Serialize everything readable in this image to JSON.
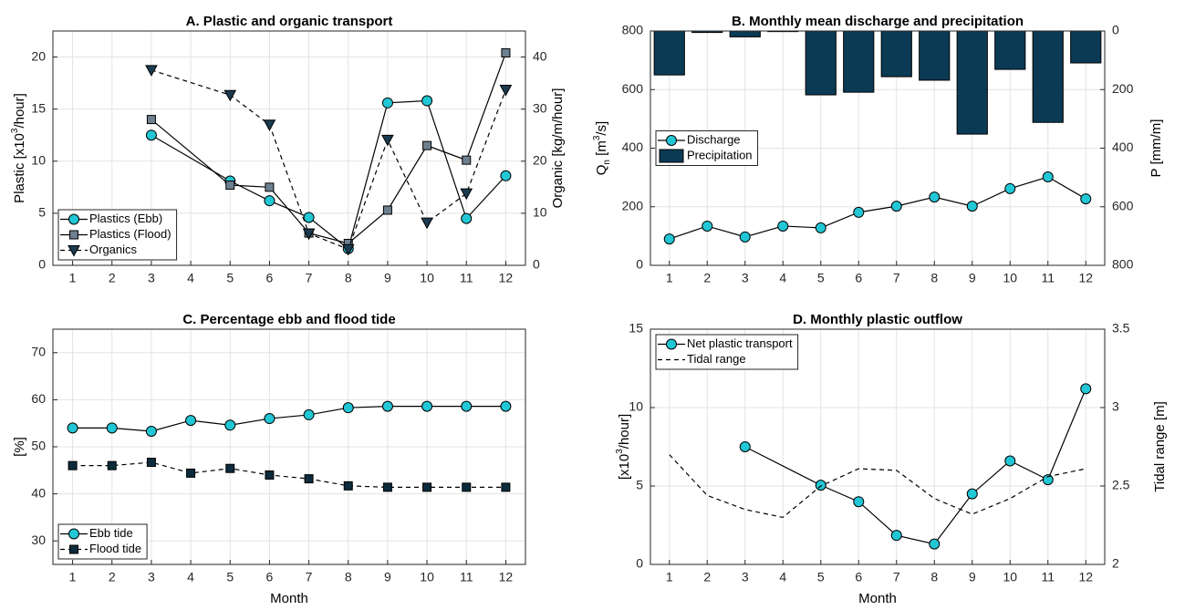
{
  "chart_data": [
    {
      "type": "line",
      "title": "A. Plastic and organic transport",
      "ylabel": [
        "Plastic [x10",
        {
          "sup": "3"
        },
        "/hour]"
      ],
      "y2label": [
        "Organic [kg/m/hour]"
      ],
      "xlim": [
        0.5,
        12.5
      ],
      "xticks": [
        1,
        2,
        3,
        4,
        5,
        6,
        7,
        8,
        9,
        10,
        11,
        12
      ],
      "ylim": [
        0,
        22.5
      ],
      "yticks": [
        0,
        5,
        10,
        15,
        20
      ],
      "y2lim": [
        0,
        45
      ],
      "y2ticks": [
        0,
        10,
        20,
        30,
        40
      ],
      "grid": true,
      "legend": "lower left",
      "series": [
        {
          "name": "Plastics (Ebb)",
          "color": "#22c7d6",
          "marker": "circle",
          "dash": false,
          "x": [
            3,
            5,
            6,
            7,
            8,
            9,
            10,
            11,
            12
          ],
          "values": [
            12.5,
            8.1,
            6.2,
            4.6,
            1.6,
            15.6,
            15.8,
            4.5,
            8.6
          ]
        },
        {
          "name": "Plastics (Flood)",
          "color": "#6d8090",
          "marker": "square",
          "dash": false,
          "x": [
            3,
            5,
            6,
            7,
            8,
            9,
            10,
            11,
            12
          ],
          "values": [
            14.0,
            7.7,
            7.5,
            3.1,
            2.1,
            5.3,
            11.5,
            10.1,
            20.4
          ]
        },
        {
          "name": "Organics",
          "color": "#1b3b50",
          "marker": "triangle",
          "dash": true,
          "axis": "y2",
          "x": [
            3,
            5,
            6,
            7,
            8,
            9,
            10,
            11,
            12
          ],
          "values": [
            37.5,
            32.7,
            27.0,
            6.1,
            3.1,
            24.1,
            8.2,
            13.8,
            33.7
          ]
        }
      ]
    },
    {
      "type": "line",
      "title": "B. Monthly mean discharge and precipitation",
      "ylabel": [
        "Q",
        {
          "sub": "n"
        },
        " [m",
        {
          "sup": "3"
        },
        "/s]"
      ],
      "y2label": [
        "P [mm/m]"
      ],
      "xlim": [
        0.5,
        12.5
      ],
      "xticks": [
        1,
        2,
        3,
        4,
        5,
        6,
        7,
        8,
        9,
        10,
        11,
        12
      ],
      "ylim": [
        0,
        800
      ],
      "yticks": [
        0,
        200,
        400,
        600,
        800
      ],
      "y2lim": [
        0,
        800
      ],
      "y2ticks": [
        0,
        200,
        400,
        600,
        800
      ],
      "y2reverse": true,
      "grid": true,
      "legend": "center left",
      "series": [
        {
          "name": "Discharge",
          "color": "#22c7d6",
          "marker": "circle",
          "dash": false,
          "x": [
            1,
            2,
            3,
            4,
            5,
            6,
            7,
            8,
            9,
            10,
            11,
            12
          ],
          "values": [
            90,
            134,
            97,
            134,
            128,
            181,
            202,
            233,
            202,
            262,
            302,
            227
          ]
        },
        {
          "name": "Precipitation",
          "color": "#0b3a55",
          "kind": "bar",
          "axis": "y2",
          "x": [
            1,
            2,
            3,
            4,
            5,
            6,
            7,
            8,
            9,
            10,
            11,
            12
          ],
          "values": [
            150,
            5,
            20,
            2,
            218,
            209,
            156,
            168,
            352,
            131,
            312,
            109
          ]
        }
      ]
    },
    {
      "type": "line",
      "title": "C. Percentage ebb and flood tide",
      "xlabel": "Month",
      "ylabel": [
        "[%]"
      ],
      "xlim": [
        0.5,
        12.5
      ],
      "xticks": [
        1,
        2,
        3,
        4,
        5,
        6,
        7,
        8,
        9,
        10,
        11,
        12
      ],
      "ylim": [
        25,
        75
      ],
      "yticks": [
        30,
        40,
        50,
        60,
        70
      ],
      "grid": true,
      "legend": "lower left",
      "series": [
        {
          "name": "Ebb tide",
          "color": "#22c7d6",
          "marker": "circle",
          "dash": false,
          "x": [
            1,
            2,
            3,
            4,
            5,
            6,
            7,
            8,
            9,
            10,
            11,
            12
          ],
          "values": [
            54,
            54,
            53.3,
            55.6,
            54.6,
            56,
            56.8,
            58.3,
            58.6,
            58.6,
            58.6,
            58.6
          ]
        },
        {
          "name": "Flood tide",
          "color": "#0c2b3c",
          "marker": "square",
          "dash": true,
          "x": [
            1,
            2,
            3,
            4,
            5,
            6,
            7,
            8,
            9,
            10,
            11,
            12
          ],
          "values": [
            46,
            46,
            46.7,
            44.4,
            45.4,
            44,
            43.2,
            41.7,
            41.4,
            41.4,
            41.4,
            41.4
          ]
        }
      ]
    },
    {
      "type": "line",
      "title": "D. Monthly plastic outflow",
      "xlabel": "Month",
      "ylabel": [
        "[x10",
        {
          "sup": "3"
        },
        "/hour]"
      ],
      "y2label": [
        "Tidal range [m]"
      ],
      "xlim": [
        0.5,
        12.5
      ],
      "xticks": [
        1,
        2,
        3,
        4,
        5,
        6,
        7,
        8,
        9,
        10,
        11,
        12
      ],
      "ylim": [
        0,
        15
      ],
      "yticks": [
        0,
        5,
        10,
        15
      ],
      "y2lim": [
        2,
        3.5
      ],
      "y2ticks": [
        2,
        2.5,
        3,
        3.5
      ],
      "grid": true,
      "legend": "upper left",
      "series": [
        {
          "name": "Net plastic transport",
          "color": "#22c7d6",
          "marker": "circle",
          "dash": false,
          "x": [
            3,
            5,
            6,
            7,
            8,
            9,
            10,
            11,
            12
          ],
          "values": [
            7.5,
            5.05,
            4.0,
            1.85,
            1.3,
            4.5,
            6.6,
            5.4,
            11.2
          ]
        },
        {
          "name": "Tidal range",
          "color": "#000000",
          "dash": true,
          "axis": "y2",
          "x": [
            1,
            2,
            3,
            4,
            5,
            6,
            7,
            8,
            9,
            10,
            11,
            12
          ],
          "values": [
            2.7,
            2.44,
            2.35,
            2.3,
            2.5,
            2.61,
            2.6,
            2.42,
            2.32,
            2.42,
            2.56,
            2.61
          ]
        }
      ]
    }
  ]
}
